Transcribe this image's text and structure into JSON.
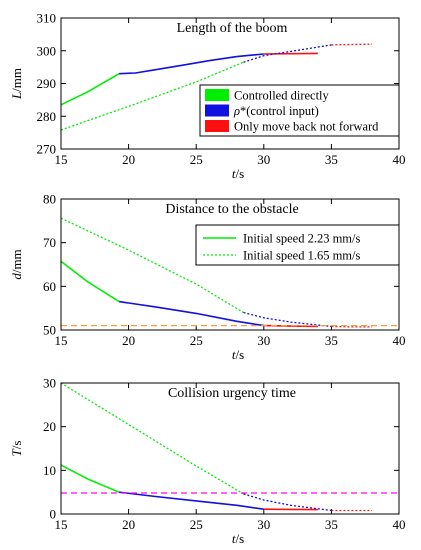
{
  "colors": {
    "green": "#00ee00",
    "blue": "#1010e0",
    "red": "#ff1010",
    "orange": "#ff9933",
    "magenta": "#ff00ff",
    "axis": "#000000"
  },
  "chart_data": [
    {
      "type": "line",
      "title": "Length of the boom",
      "xlabel": "t/s",
      "ylabel": "L/mm",
      "xlim": [
        15,
        40
      ],
      "ylim": [
        270,
        310
      ],
      "xticks": [
        "15",
        "20",
        "25",
        "30",
        "35",
        "40"
      ],
      "yticks": [
        "270",
        "280",
        "290",
        "300",
        "310"
      ],
      "grid": false,
      "legend_placement": "bottom-right",
      "legend": [
        {
          "label": "Controlled directly",
          "color": "#00ee00"
        },
        {
          "label": "ρ*(control input)",
          "color": "#1010e0"
        },
        {
          "label": "Only move back not forward",
          "color": "#ff1010"
        }
      ],
      "series": [
        {
          "color": "#00ee00",
          "style": "solid",
          "points": [
            [
              15,
              283.5
            ],
            [
              17,
              287.5
            ],
            [
              19.3,
              293
            ]
          ]
        },
        {
          "color": "#1010e0",
          "style": "solid",
          "points": [
            [
              19.3,
              293
            ],
            [
              20.5,
              293.2
            ],
            [
              22,
              294.2
            ],
            [
              24,
              295.6
            ],
            [
              26,
              297
            ],
            [
              28,
              298.2
            ],
            [
              30,
              299
            ]
          ]
        },
        {
          "color": "#ff1010",
          "style": "solid",
          "points": [
            [
              30,
              299
            ],
            [
              32,
              299.1
            ],
            [
              34,
              299.2
            ]
          ]
        },
        {
          "color": "#00ee00",
          "style": "dotted",
          "points": [
            [
              15,
              275.8
            ],
            [
              20,
              283
            ],
            [
              25,
              290.5
            ],
            [
              28.5,
              296.5
            ]
          ]
        },
        {
          "color": "#1010e0",
          "style": "dotted",
          "points": [
            [
              28.5,
              296.5
            ],
            [
              30,
              298.5
            ],
            [
              32,
              299.8
            ],
            [
              35,
              301.8
            ]
          ]
        },
        {
          "color": "#ff1010",
          "style": "dotted",
          "points": [
            [
              35,
              301.8
            ],
            [
              36.5,
              301.9
            ],
            [
              38,
              302
            ]
          ]
        }
      ]
    },
    {
      "type": "line",
      "title": "Distance to the obstacle",
      "xlabel": "t/s",
      "ylabel": "d/mm",
      "xlim": [
        15,
        40
      ],
      "ylim": [
        50,
        80
      ],
      "xticks": [
        "15",
        "20",
        "25",
        "30",
        "35",
        "40"
      ],
      "yticks": [
        "50",
        "60",
        "70",
        "80"
      ],
      "grid": false,
      "legend_placement": "top-right",
      "legend": [
        {
          "label": "Initial speed 2.23 mm/s",
          "color": "#00ee00",
          "style": "solid"
        },
        {
          "label": "Initial speed 1.65 mm/s",
          "color": "#00ee00",
          "style": "dotted"
        }
      ],
      "series": [
        {
          "color": "#00ee00",
          "style": "solid",
          "points": [
            [
              15,
              65.7
            ],
            [
              17,
              61
            ],
            [
              19.3,
              56.5
            ]
          ]
        },
        {
          "color": "#1010e0",
          "style": "solid",
          "points": [
            [
              19.3,
              56.5
            ],
            [
              22,
              55.3
            ],
            [
              25,
              53.8
            ],
            [
              28,
              52
            ],
            [
              30,
              51
            ]
          ]
        },
        {
          "color": "#ff1010",
          "style": "solid",
          "points": [
            [
              30,
              51
            ],
            [
              32,
              50.9
            ],
            [
              34,
              50.8
            ]
          ]
        },
        {
          "color": "#00ee00",
          "style": "dotted",
          "points": [
            [
              15,
              75.6
            ],
            [
              20,
              68.3
            ],
            [
              25,
              60.5
            ],
            [
              28.5,
              54
            ]
          ]
        },
        {
          "color": "#1010e0",
          "style": "dotted",
          "points": [
            [
              28.5,
              54
            ],
            [
              30,
              52.8
            ],
            [
              32,
              51.8
            ],
            [
              35,
              50.8
            ]
          ]
        },
        {
          "color": "#ff1010",
          "style": "dotted",
          "points": [
            [
              35,
              50.8
            ],
            [
              36.5,
              50.7
            ],
            [
              38,
              50.7
            ]
          ]
        },
        {
          "color": "#ff9933",
          "style": "dashed",
          "points": [
            [
              15,
              51
            ],
            [
              40,
              51
            ]
          ]
        }
      ]
    },
    {
      "type": "line",
      "title": "Collision urgency time",
      "xlabel": "t/s",
      "ylabel": "T/s",
      "xlim": [
        15,
        40
      ],
      "ylim": [
        0,
        30
      ],
      "xticks": [
        "15",
        "20",
        "25",
        "30",
        "35",
        "40"
      ],
      "yticks": [
        "0",
        "10",
        "20",
        "30"
      ],
      "grid": false,
      "series": [
        {
          "color": "#00ee00",
          "style": "solid",
          "points": [
            [
              15,
              11.2
            ],
            [
              17,
              8
            ],
            [
              19.3,
              5
            ]
          ]
        },
        {
          "color": "#1010e0",
          "style": "solid",
          "points": [
            [
              19.3,
              5
            ],
            [
              22,
              4
            ],
            [
              25,
              3
            ],
            [
              28,
              2
            ],
            [
              30,
              1.1
            ]
          ]
        },
        {
          "color": "#ff1010",
          "style": "solid",
          "points": [
            [
              30,
              1.1
            ],
            [
              32,
              1.05
            ],
            [
              34,
              1
            ]
          ]
        },
        {
          "color": "#00ee00",
          "style": "dotted",
          "points": [
            [
              15,
              30
            ],
            [
              20,
              20.5
            ],
            [
              25,
              11
            ],
            [
              28.5,
              4.6
            ]
          ]
        },
        {
          "color": "#1010e0",
          "style": "dotted",
          "points": [
            [
              28.5,
              4.6
            ],
            [
              30,
              3.2
            ],
            [
              32,
              2
            ],
            [
              35,
              0.8
            ]
          ]
        },
        {
          "color": "#ff1010",
          "style": "dotted",
          "points": [
            [
              35,
              0.8
            ],
            [
              36.5,
              0.8
            ],
            [
              38,
              0.8
            ]
          ]
        },
        {
          "color": "#ff00ff",
          "style": "dashed",
          "points": [
            [
              15,
              4.8
            ],
            [
              40,
              4.8
            ]
          ]
        }
      ]
    }
  ]
}
